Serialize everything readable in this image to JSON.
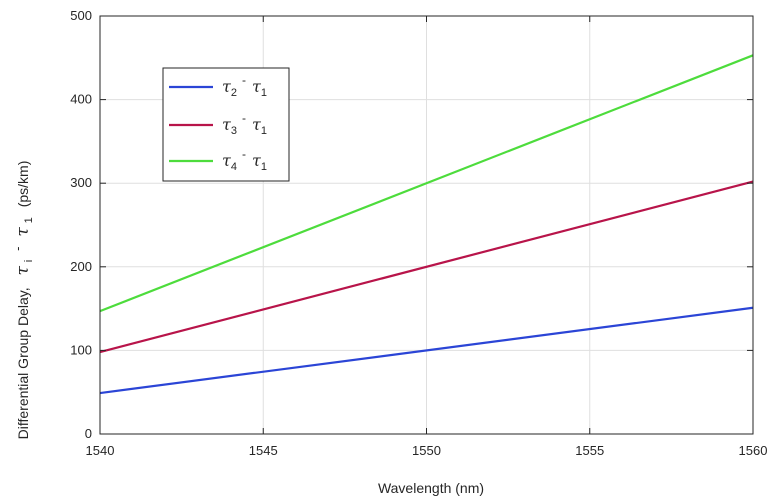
{
  "chart_data": {
    "type": "line",
    "xlabel": "Wavelength (nm)",
    "ylabel": {
      "prefix": "Differential Group Delay,",
      "sym": "τ",
      "sub_i": "i",
      "dash": "-",
      "sub_1": "1",
      "unit": "(ps/km)"
    },
    "xlim": [
      1540,
      1560
    ],
    "ylim": [
      0,
      500
    ],
    "xticks": [
      1540,
      1545,
      1550,
      1555,
      1560
    ],
    "yticks": [
      0,
      100,
      200,
      300,
      400,
      500
    ],
    "grid": true,
    "legend_position": "upper-left",
    "x": [
      1540,
      1560
    ],
    "series": [
      {
        "name": "τ2 - τ1",
        "sym": "τ",
        "sub_a": "2",
        "dash": "-",
        "sub_b": "1",
        "color": "#2b45d6",
        "values": [
          49,
          151
        ]
      },
      {
        "name": "τ3 - τ1",
        "sym": "τ",
        "sub_a": "3",
        "dash": "-",
        "sub_b": "1",
        "color": "#b8144a",
        "values": [
          98,
          302
        ]
      },
      {
        "name": "τ4 - τ1",
        "sym": "τ",
        "sub_a": "4",
        "dash": "-",
        "sub_b": "1",
        "color": "#4ddc3c",
        "values": [
          147,
          453
        ]
      }
    ]
  }
}
